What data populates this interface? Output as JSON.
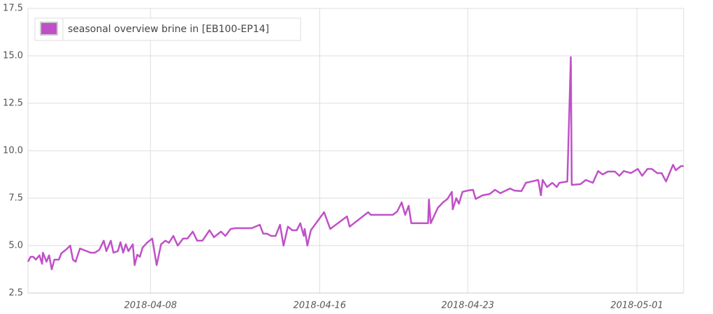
{
  "chart_data": {
    "type": "line",
    "x": [
      "2018-04-02 05:00",
      "2018-04-02 08:00",
      "2018-04-02 11:00",
      "2018-04-02 14:00",
      "2018-04-02 18:00",
      "2018-04-02 21:00",
      "2018-04-02 22:00",
      "2018-04-03 02:00",
      "2018-04-03 05:00",
      "2018-04-03 08:00",
      "2018-04-03 11:00",
      "2018-04-03 16:00",
      "2018-04-03 19:00",
      "2018-04-04 00:00",
      "2018-04-04 05:00",
      "2018-04-04 08:00",
      "2018-04-04 11:00",
      "2018-04-04 16:00",
      "2018-04-05 04:00",
      "2018-04-05 09:00",
      "2018-04-05 14:00",
      "2018-04-05 19:00",
      "2018-04-05 22:00",
      "2018-04-06 03:00",
      "2018-04-06 06:00",
      "2018-04-06 11:00",
      "2018-04-06 14:00",
      "2018-04-06 17:00",
      "2018-04-06 20:00",
      "2018-04-06 23:00",
      "2018-04-07 04:00",
      "2018-04-07 06:00",
      "2018-04-07 09:00",
      "2018-04-07 12:00",
      "2018-04-07 15:00",
      "2018-04-07 20:00",
      "2018-04-08 02:00",
      "2018-04-08 07:00",
      "2018-04-08 12:00",
      "2018-04-08 17:00",
      "2018-04-08 21:00",
      "2018-04-09 02:00",
      "2018-04-09 07:00",
      "2018-04-09 13:00",
      "2018-04-09 18:00",
      "2018-04-10 00:00",
      "2018-04-10 05:00",
      "2018-04-10 11:00",
      "2018-04-10 19:00",
      "2018-04-11 00:00",
      "2018-04-11 08:00",
      "2018-04-11 13:00",
      "2018-04-11 19:00",
      "2018-04-12 00:00",
      "2018-04-12 19:00",
      "2018-04-13 04:00",
      "2018-04-13 08:00",
      "2018-04-13 12:00",
      "2018-04-13 17:00",
      "2018-04-13 22:00",
      "2018-04-14 03:00",
      "2018-04-14 07:00",
      "2018-04-14 12:00",
      "2018-04-14 17:00",
      "2018-04-14 22:00",
      "2018-04-15 02:00",
      "2018-04-15 06:00",
      "2018-04-15 07:00",
      "2018-04-15 10:00",
      "2018-04-15 14:00",
      "2018-04-16 05:00",
      "2018-04-16 12:00",
      "2018-04-17 07:00",
      "2018-04-17 10:00",
      "2018-04-18 07:00",
      "2018-04-18 10:00",
      "2018-04-19 11:00",
      "2018-04-19 16:00",
      "2018-04-19 21:00",
      "2018-04-20 01:00",
      "2018-04-20 05:00",
      "2018-04-20 08:00",
      "2018-04-21 03:00",
      "2018-04-21 04:00",
      "2018-04-21 06:00",
      "2018-04-21 14:00",
      "2018-04-21 20:00",
      "2018-04-22 01:00",
      "2018-04-22 06:00",
      "2018-04-22 07:00",
      "2018-04-22 11:00",
      "2018-04-22 14:00",
      "2018-04-22 18:00",
      "2018-04-23 00:00",
      "2018-04-23 06:00",
      "2018-04-23 09:00",
      "2018-04-23 17:00",
      "2018-04-24 01:00",
      "2018-04-24 07:00",
      "2018-04-24 13:00",
      "2018-04-25 00:00",
      "2018-04-25 05:00",
      "2018-04-25 13:00",
      "2018-04-25 18:00",
      "2018-04-26 08:00",
      "2018-04-26 11:00",
      "2018-04-26 13:00",
      "2018-04-26 18:00",
      "2018-04-27 00:00",
      "2018-04-27 05:00",
      "2018-04-27 08:00",
      "2018-04-27 17:00",
      "2018-04-27 21:00",
      "2018-04-27 22:00",
      "2018-04-28 08:00",
      "2018-04-28 14:00",
      "2018-04-28 22:00",
      "2018-04-29 04:00",
      "2018-04-29 09:00",
      "2018-04-29 15:00",
      "2018-04-29 23:00",
      "2018-04-30 04:00",
      "2018-04-30 09:00",
      "2018-04-30 17:00",
      "2018-05-01 01:00",
      "2018-05-01 06:00",
      "2018-05-01 12:00",
      "2018-05-01 17:00",
      "2018-05-01 23:00",
      "2018-05-02 04:00",
      "2018-05-02 09:00",
      "2018-05-02 13:00",
      "2018-05-02 17:00",
      "2018-05-02 20:00",
      "2018-05-03 02:00",
      "2018-05-03 05:00"
    ],
    "series": [
      {
        "name": "seasonal overview brine in [EB100-EP14]",
        "color": "#c050c8",
        "values": [
          4.15,
          4.41,
          4.41,
          4.26,
          4.49,
          4.04,
          4.63,
          4.15,
          4.49,
          3.75,
          4.26,
          4.26,
          4.6,
          4.78,
          5.0,
          4.26,
          4.15,
          4.85,
          4.63,
          4.63,
          4.78,
          5.26,
          4.71,
          5.26,
          4.63,
          4.71,
          5.18,
          4.63,
          5.07,
          4.71,
          5.07,
          3.97,
          4.52,
          4.41,
          4.89,
          5.15,
          5.37,
          3.97,
          5.07,
          5.26,
          5.15,
          5.51,
          5.0,
          5.37,
          5.37,
          5.74,
          5.26,
          5.26,
          5.81,
          5.44,
          5.74,
          5.51,
          5.88,
          5.92,
          5.92,
          6.1,
          5.63,
          5.63,
          5.51,
          5.51,
          6.1,
          5.0,
          6.0,
          5.81,
          5.81,
          6.18,
          5.51,
          5.88,
          5.0,
          5.81,
          6.76,
          5.88,
          6.54,
          6.0,
          6.76,
          6.62,
          6.62,
          6.8,
          7.28,
          6.62,
          7.1,
          6.18,
          6.18,
          7.43,
          6.18,
          6.99,
          7.28,
          7.46,
          7.83,
          6.91,
          7.5,
          7.21,
          7.83,
          7.9,
          7.94,
          7.46,
          7.65,
          7.72,
          7.94,
          7.76,
          8.01,
          7.9,
          7.87,
          8.31,
          8.46,
          7.65,
          8.46,
          8.09,
          8.31,
          8.09,
          8.31,
          8.38,
          14.93,
          8.2,
          8.24,
          8.46,
          8.31,
          8.93,
          8.75,
          8.9,
          8.9,
          8.68,
          8.93,
          8.82,
          9.04,
          8.68,
          9.04,
          9.04,
          8.82,
          8.82,
          8.38,
          8.82,
          9.26,
          8.97,
          9.19,
          9.19
        ]
      }
    ],
    "xlim": [
      "2018-04-02 05:00",
      "2018-05-03 05:00"
    ],
    "xticks": [
      "2018-04-08",
      "2018-04-16",
      "2018-04-23",
      "2018-05-01"
    ],
    "ylim": [
      2.5,
      17.5
    ],
    "yticks": [
      2.5,
      {
        "value": 5,
        "label": "5.0"
      },
      7.5,
      {
        "value": 10,
        "label": "10.0"
      },
      12.5,
      {
        "value": 15,
        "label": "15.0"
      },
      17.5
    ],
    "grid": true,
    "legend": "top-left"
  }
}
